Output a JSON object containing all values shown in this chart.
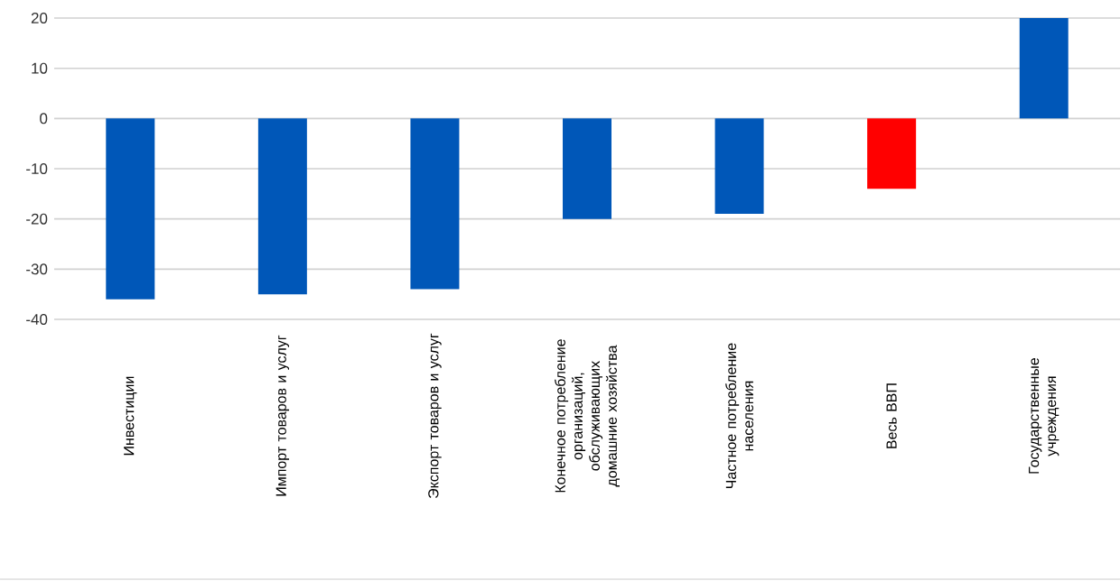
{
  "chart_data": {
    "type": "bar",
    "categories": [
      "Инвестиции",
      "Импорт товаров и услуг",
      "Экспорт товаров и услуг",
      "Конечное потребление организаций, обслуживающих домашние хозяйства",
      "Частное потребление населения",
      "Весь ВВП",
      "Государственные учреждения"
    ],
    "values": [
      -36,
      -35,
      -34,
      -20,
      -19,
      -14,
      20
    ],
    "colors": [
      "#0057b8",
      "#0057b8",
      "#0057b8",
      "#0057b8",
      "#0057b8",
      "#ff0000",
      "#0057b8"
    ],
    "ylim": [
      -40,
      20
    ],
    "yticks": [
      -40,
      -30,
      -20,
      -10,
      0,
      10,
      20
    ],
    "grid": "y"
  }
}
